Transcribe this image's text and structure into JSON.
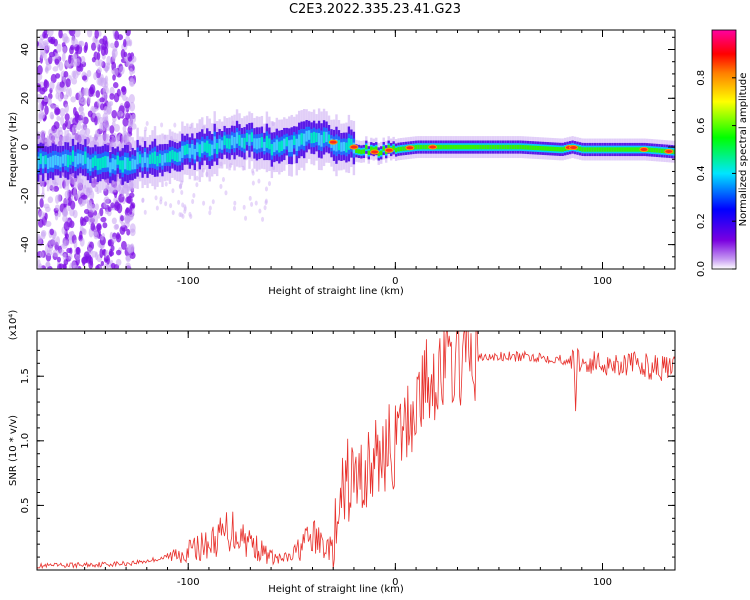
{
  "title": "C2E3.2022.335.23.41.G23",
  "chart_data": [
    {
      "type": "heatmap",
      "xlabel": "Height of straight line (km)",
      "ylabel": "Frequency (Hz)",
      "xlim": [
        -173,
        135
      ],
      "ylim": [
        -50,
        48
      ],
      "xticks": [
        -100,
        0,
        100
      ],
      "yticks": [
        -40,
        -20,
        0,
        20,
        40
      ],
      "colorbar": {
        "label": "Normalized spectral amplitude",
        "ticks": [
          "0.0",
          "0.2",
          "0.4",
          "0.6",
          "0.8"
        ],
        "range": [
          0,
          1
        ]
      },
      "ridge": {
        "x": [
          -173,
          -155,
          -140,
          -125,
          -110,
          -100,
          -90,
          -80,
          -70,
          -60,
          -50,
          -40,
          -30,
          -25,
          -20,
          -10,
          0,
          10,
          20,
          40,
          60,
          80,
          85,
          90,
          100,
          120,
          135
        ],
        "y": [
          -6,
          -5,
          -7,
          -6,
          -5,
          -2,
          0,
          2,
          3,
          0,
          2,
          4,
          2,
          0,
          0,
          -2,
          -1,
          0,
          0,
          0,
          0,
          -1,
          0,
          -1,
          -1,
          -1,
          -2
        ]
      }
    },
    {
      "type": "line",
      "xlabel": "Height of straight line (km)",
      "ylabel": "SNR (10 * v/v)",
      "scale_label": "(x10⁴)",
      "xlim": [
        -173,
        135
      ],
      "ylim": [
        0,
        1.85
      ],
      "xticks": [
        -100,
        0,
        100
      ],
      "yticks": [
        0.5,
        1.0,
        1.5
      ],
      "ytick_labels": [
        "0.5",
        "1.0",
        "1.5"
      ],
      "color": "#e8322d",
      "series": [
        {
          "x": [
            -173,
            -150,
            -130,
            -120,
            -110,
            -100,
            -90,
            -85,
            -80,
            -75,
            -70,
            -65,
            -60,
            -55,
            -50,
            -45,
            -40,
            -35,
            -30,
            -27,
            -25,
            -22,
            -20,
            -17,
            -15,
            -12,
            -10,
            -5,
            0,
            5,
            10,
            15,
            20,
            25,
            30,
            40,
            50,
            60,
            70,
            80,
            86,
            87,
            88,
            90,
            100,
            110,
            120,
            130,
            135
          ],
          "y": [
            0.03,
            0.04,
            0.05,
            0.07,
            0.1,
            0.15,
            0.2,
            0.25,
            0.32,
            0.28,
            0.22,
            0.15,
            0.1,
            0.08,
            0.1,
            0.2,
            0.25,
            0.2,
            0.15,
            0.35,
            0.6,
            0.72,
            0.68,
            0.7,
            0.75,
            0.8,
            0.82,
            0.95,
            0.95,
            1.1,
            1.3,
            1.45,
            1.52,
            1.58,
            1.62,
            1.64,
            1.65,
            1.65,
            1.65,
            1.63,
            1.62,
            1.3,
            1.65,
            1.6,
            1.6,
            1.6,
            1.58,
            1.56,
            1.55
          ]
        }
      ]
    }
  ]
}
